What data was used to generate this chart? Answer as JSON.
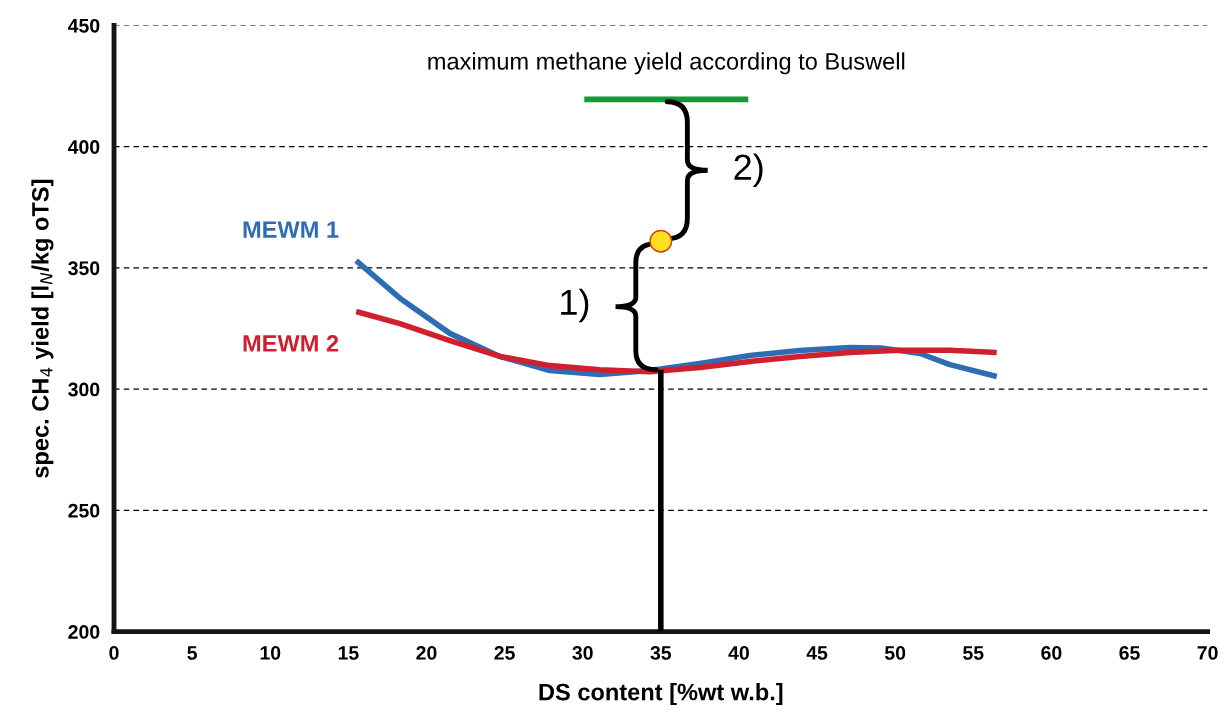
{
  "chart_data": {
    "type": "line",
    "xlabel": "DS content [%wt w.b.]",
    "ylabel": "spec. CH$_{4}$ yield [l$_{N}$/kg oTS]",
    "xlim": [
      0,
      70
    ],
    "xticks": [
      0,
      5,
      10,
      15,
      20,
      25,
      30,
      35,
      40,
      45,
      50,
      55,
      60,
      65,
      70
    ],
    "ylim": [
      200,
      450
    ],
    "yticks": [
      200,
      250,
      300,
      350,
      400,
      450
    ],
    "grid": "y",
    "legend": false,
    "marker": "none",
    "line_style": "solid",
    "series": [
      {
        "name": "MEWM 1",
        "color": "#2e6db4",
        "x": [
          15.5,
          18.3,
          21.5,
          24.7,
          27.9,
          31.1,
          34.3,
          37.5,
          40.7,
          43.9,
          47.1,
          49.1,
          51.6,
          53.5,
          56.5
        ],
        "values": [
          353,
          337.5,
          323,
          313.5,
          307.7,
          306,
          307.7,
          310.6,
          313.9,
          315.9,
          317.2,
          317,
          314.7,
          310.1,
          305.2
        ]
      },
      {
        "name": "MEWM 2",
        "color": "#d0202e",
        "x": [
          15.5,
          18.3,
          21.5,
          24.7,
          27.9,
          31.1,
          34.3,
          37.5,
          40.7,
          43.9,
          47.1,
          50.3,
          53.5,
          56.5
        ],
        "values": [
          332,
          327,
          320,
          313.5,
          309.7,
          308,
          307.2,
          308.9,
          311.4,
          313.5,
          315.1,
          316,
          316,
          315.1
        ]
      },
      {
        "color": "#000000",
        "x": [
          35,
          35
        ],
        "values": [
          200,
          308
        ]
      },
      {
        "color": "#109a38",
        "x": [
          30.1,
          40.6
        ],
        "values": [
          419.5,
          419.5
        ]
      },
      {
        "type": "scatter",
        "color": "#ffe020",
        "x": [
          35
        ],
        "values": [
          361
        ],
        "marker": "circle"
      }
    ],
    "annotations": [
      {
        "text": "maximum methane yield according to Buswell",
        "x": 35.35,
        "y": 419.5
      },
      "1)",
      "2)"
    ]
  }
}
